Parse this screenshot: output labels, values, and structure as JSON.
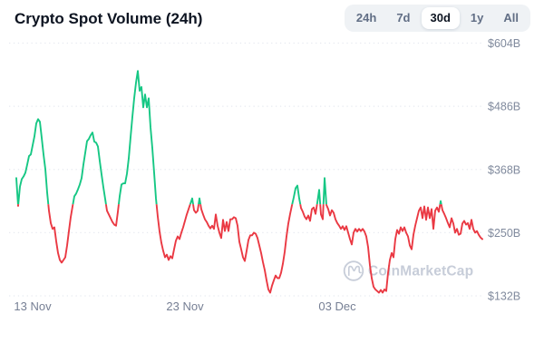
{
  "header": {
    "title": "Crypto Spot Volume (24h)"
  },
  "range_selector": {
    "options": [
      "24h",
      "7d",
      "30d",
      "1y",
      "All"
    ],
    "selected": "30d"
  },
  "watermark": {
    "label": "CoinMarketCap"
  },
  "colors": {
    "up": "#16c784",
    "down": "#ea3943",
    "title": "#0d1421",
    "axis_label": "#808a9d",
    "grid": "#e7eaf0",
    "selector_bg": "#eff2f5",
    "selector_text": "#616e85",
    "watermark": "#c7cdd9"
  },
  "chart_data": {
    "type": "line",
    "title": "Crypto Spot Volume (24h)",
    "unit": "USD billions (24h spot volume)",
    "timeframe": "30d",
    "grid": "dotted horizontal gridlines",
    "legend": "none",
    "y_ticks": [
      "$604B",
      "$486B",
      "$368B",
      "$250B",
      "$132B"
    ],
    "y_tick_values": [
      604,
      486,
      368,
      250,
      132
    ],
    "ylim": [
      132,
      604
    ],
    "x_ticks": [
      "13 Nov",
      "23 Nov",
      "03 Dec"
    ],
    "x_tick_indices": [
      9,
      93,
      177
    ],
    "color_rule": "segments above threshold are green (up), below are red (down)",
    "color_threshold": 303,
    "values": [
      352,
      300,
      336,
      350,
      355,
      362,
      377,
      393,
      396,
      413,
      430,
      454,
      462,
      457,
      427,
      396,
      369,
      325,
      291,
      268,
      257,
      260,
      234,
      212,
      199,
      194,
      199,
      204,
      226,
      253,
      279,
      299,
      318,
      323,
      331,
      340,
      352,
      377,
      399,
      421,
      425,
      432,
      437,
      420,
      418,
      411,
      384,
      359,
      335,
      313,
      291,
      284,
      277,
      270,
      265,
      263,
      289,
      318,
      340,
      342,
      342,
      360,
      389,
      428,
      466,
      501,
      530,
      552,
      515,
      522,
      484,
      508,
      484,
      501,
      447,
      408,
      362,
      314,
      280,
      252,
      231,
      216,
      204,
      209,
      199,
      206,
      202,
      219,
      235,
      243,
      238,
      250,
      260,
      272,
      284,
      294,
      304,
      314,
      292,
      287,
      291,
      314,
      294,
      284,
      275,
      270,
      263,
      258,
      263,
      257,
      284,
      263,
      250,
      240,
      274,
      253,
      270,
      253,
      275,
      275,
      279,
      277,
      263,
      233,
      219,
      204,
      197,
      216,
      236,
      245,
      245,
      250,
      248,
      240,
      226,
      212,
      195,
      180,
      161,
      144,
      138,
      151,
      161,
      170,
      165,
      165,
      175,
      192,
      214,
      243,
      267,
      285,
      301,
      316,
      333,
      338,
      314,
      296,
      289,
      280,
      275,
      282,
      272,
      294,
      297,
      285,
      306,
      330,
      284,
      275,
      352,
      302,
      294,
      282,
      292,
      287,
      275,
      268,
      263,
      257,
      262,
      255,
      262,
      250,
      238,
      228,
      250,
      257,
      252,
      257,
      253,
      257,
      252,
      243,
      223,
      189,
      165,
      149,
      144,
      141,
      138,
      143,
      138,
      144,
      141,
      175,
      199,
      212,
      204,
      238,
      255,
      248,
      260,
      253,
      260,
      250,
      243,
      226,
      219,
      246,
      263,
      277,
      291,
      297,
      277,
      299,
      274,
      297,
      277,
      294,
      257,
      291,
      297,
      289,
      309,
      292,
      285,
      277,
      268,
      260,
      277,
      267,
      250,
      257,
      246,
      248,
      267,
      272,
      265,
      268,
      257,
      274,
      257,
      250,
      253,
      246,
      241,
      238
    ]
  }
}
